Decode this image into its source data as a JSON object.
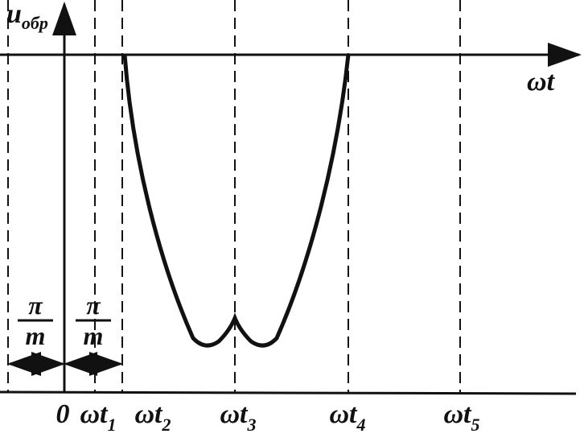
{
  "axes": {
    "y_label": {
      "main": "u",
      "sub": "обр"
    },
    "x_label": "ωt"
  },
  "ticks": [
    {
      "main": "0"
    },
    {
      "main": "ωt",
      "sub": "1"
    },
    {
      "main": "ωt",
      "sub": "2"
    },
    {
      "main": "ωt",
      "sub": "3"
    },
    {
      "main": "ωt",
      "sub": "4"
    },
    {
      "main": "ωt",
      "sub": "5"
    }
  ],
  "intervals": [
    {
      "numerator": "π",
      "denominator": "m"
    },
    {
      "numerator": "π",
      "denominator": "m"
    }
  ]
}
